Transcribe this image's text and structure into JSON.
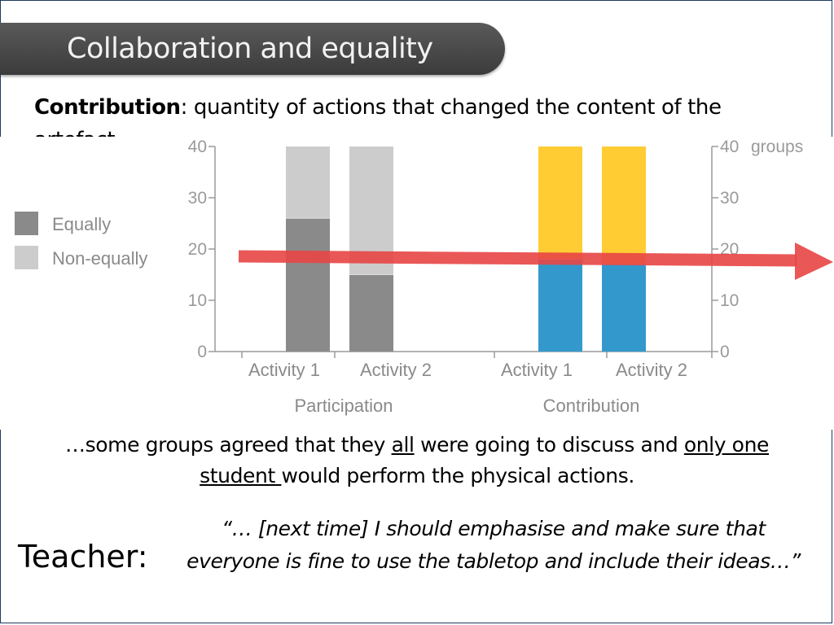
{
  "slide": {
    "title": "Collaboration and equality",
    "intro_bold": "Contribution",
    "intro_rest": ": quantity of actions that changed the content of the artefact",
    "finding": {
      "p1": "…some groups agreed that they ",
      "u1": "all",
      "p2": " were going to discuss and ",
      "u2": "only one student ",
      "p3": "would perform the physical actions."
    },
    "teacher_label": "Teacher:",
    "quote": "“… [next time] I should emphasise and make sure that everyone is fine to use the tabletop and include their ideas…”"
  },
  "chart_data": {
    "type": "bar",
    "stacked": true,
    "unit_label": "groups",
    "ylim": [
      0,
      40
    ],
    "yticks": [
      0,
      10,
      20,
      30,
      40
    ],
    "categories": [
      "Activity 1",
      "Activity 2",
      "Activity 1",
      "Activity 2"
    ],
    "groups": [
      "Participation",
      "Contribution"
    ],
    "legend": [
      "Equally",
      "Non-equally"
    ],
    "panels": [
      {
        "group": "Participation",
        "colors": {
          "equally": "#8a8a8a",
          "non_equally": "#cccccc"
        },
        "bars": [
          {
            "category": "Activity 1",
            "equally": 26,
            "non_equally": 14
          },
          {
            "category": "Activity 2",
            "equally": 15,
            "non_equally": 25
          }
        ]
      },
      {
        "group": "Contribution",
        "colors": {
          "equally": "#3399cc",
          "non_equally": "#ffcc33"
        },
        "bars": [
          {
            "category": "Activity 1",
            "equally": 18,
            "non_equally": 22
          },
          {
            "category": "Activity 2",
            "equally": 17,
            "non_equally": 23
          }
        ]
      }
    ],
    "arrow_color": "#e84545"
  }
}
